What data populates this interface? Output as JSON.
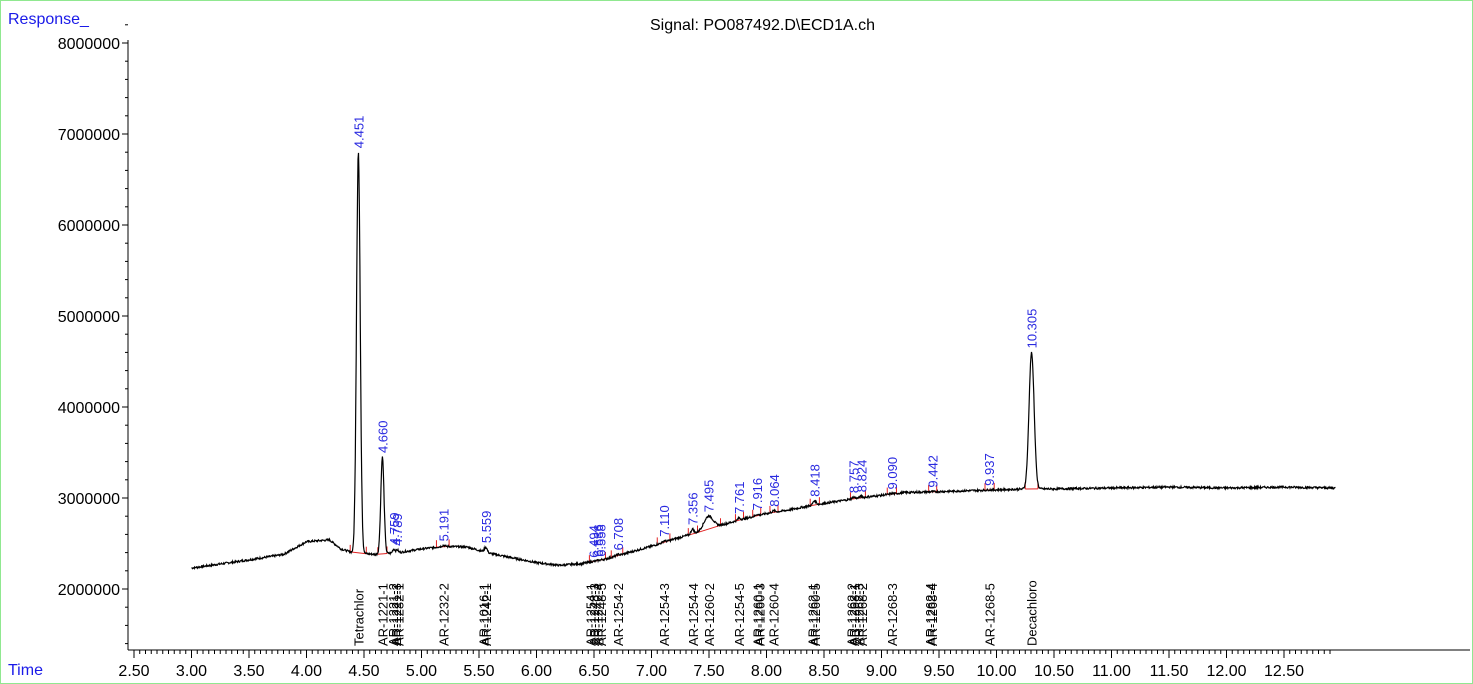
{
  "header": {
    "y_axis_label": "Response_",
    "x_axis_label": "Time",
    "title": "Signal: PO087492.D\\ECD1A.ch"
  },
  "colors": {
    "trace": "#000000",
    "baseline": "#e02020",
    "retention_labels": "#2a2ae0",
    "axis_titles": "#1a1ae8",
    "frame": "#90e890"
  },
  "chart_data": {
    "type": "line",
    "title": "Signal: PO087492.D\\ECD1A.ch",
    "xlabel": "Time",
    "ylabel": "Response_",
    "xlim": [
      2.5,
      12.95
    ],
    "ylim": [
      1300000,
      8400000
    ],
    "x_ticks": [
      "2.50",
      "3.00",
      "3.50",
      "4.00",
      "4.50",
      "5.00",
      "5.50",
      "6.00",
      "6.50",
      "7.00",
      "7.50",
      "8.00",
      "8.50",
      "9.00",
      "9.50",
      "10.00",
      "10.50",
      "11.00",
      "11.50",
      "12.00",
      "12.50"
    ],
    "y_ticks": [
      "2000000",
      "3000000",
      "4000000",
      "5000000",
      "6000000",
      "7000000",
      "8000000"
    ],
    "grid": false,
    "baseline_points": [
      [
        3.0,
        2230000
      ],
      [
        3.5,
        2320000
      ],
      [
        3.8,
        2380000
      ],
      [
        3.9,
        2450000
      ],
      [
        4.0,
        2520000
      ],
      [
        4.2,
        2540000
      ],
      [
        4.3,
        2440000
      ],
      [
        4.4,
        2400000
      ],
      [
        4.6,
        2380000
      ],
      [
        4.8,
        2400000
      ],
      [
        5.0,
        2440000
      ],
      [
        5.2,
        2470000
      ],
      [
        5.4,
        2460000
      ],
      [
        5.6,
        2390000
      ],
      [
        5.8,
        2340000
      ],
      [
        6.0,
        2290000
      ],
      [
        6.2,
        2260000
      ],
      [
        6.4,
        2280000
      ],
      [
        6.6,
        2330000
      ],
      [
        6.8,
        2400000
      ],
      [
        7.0,
        2470000
      ],
      [
        7.2,
        2550000
      ],
      [
        7.4,
        2620000
      ],
      [
        7.6,
        2700000
      ],
      [
        7.8,
        2770000
      ],
      [
        8.0,
        2830000
      ],
      [
        8.2,
        2870000
      ],
      [
        8.4,
        2920000
      ],
      [
        8.6,
        2960000
      ],
      [
        8.8,
        3000000
      ],
      [
        9.0,
        3030000
      ],
      [
        9.2,
        3060000
      ],
      [
        9.5,
        3070000
      ],
      [
        10.0,
        3090000
      ],
      [
        10.3,
        3100000
      ],
      [
        10.5,
        3100000
      ],
      [
        11.0,
        3110000
      ],
      [
        11.5,
        3120000
      ],
      [
        12.0,
        3110000
      ],
      [
        12.5,
        3120000
      ],
      [
        12.95,
        3110000
      ]
    ],
    "peaks": [
      {
        "rt": 4.451,
        "label": "4.451",
        "height": 6800000,
        "width": 0.016
      },
      {
        "rt": 4.66,
        "label": "4.660",
        "height": 3450000,
        "width": 0.014
      },
      {
        "rt": 4.759,
        "label": "4.759",
        "height": 2440000,
        "width": 0.01
      },
      {
        "rt": 4.789,
        "label": "4.789",
        "height": 2430000,
        "width": 0.01
      },
      {
        "rt": 5.191,
        "label": "5.191",
        "height": 2480000,
        "width": 0.012
      },
      {
        "rt": 5.559,
        "label": "5.559",
        "height": 2460000,
        "width": 0.012
      },
      {
        "rt": 6.494,
        "label": "6.494",
        "height": 2300000,
        "width": 0.01
      },
      {
        "rt": 6.536,
        "label": "6.536",
        "height": 2310000,
        "width": 0.01
      },
      {
        "rt": 6.558,
        "label": "6.558",
        "height": 2310000,
        "width": 0.01
      },
      {
        "rt": 6.708,
        "label": "6.708",
        "height": 2380000,
        "width": 0.012
      },
      {
        "rt": 7.11,
        "label": "7.110",
        "height": 2530000,
        "width": 0.012
      },
      {
        "rt": 7.356,
        "label": "7.356",
        "height": 2660000,
        "width": 0.012
      },
      {
        "rt": 7.495,
        "label": "7.495",
        "height": 2800000,
        "width": 0.04
      },
      {
        "rt": 7.761,
        "label": "7.761",
        "height": 2780000,
        "width": 0.012
      },
      {
        "rt": 7.916,
        "label": "7.916",
        "height": 2820000,
        "width": 0.012
      },
      {
        "rt": 8.064,
        "label": "8.064",
        "height": 2860000,
        "width": 0.014
      },
      {
        "rt": 8.418,
        "label": "8.418",
        "height": 2970000,
        "width": 0.014
      },
      {
        "rt": 8.757,
        "label": "8.757",
        "height": 3010000,
        "width": 0.012
      },
      {
        "rt": 8.824,
        "label": "8.824",
        "height": 3020000,
        "width": 0.012
      },
      {
        "rt": 9.09,
        "label": "9.090",
        "height": 3050000,
        "width": 0.012
      },
      {
        "rt": 9.442,
        "label": "9.442",
        "height": 3070000,
        "width": 0.012
      },
      {
        "rt": 9.937,
        "label": "9.937",
        "height": 3090000,
        "width": 0.012
      },
      {
        "rt": 10.305,
        "label": "10.305",
        "height": 4600000,
        "width": 0.022
      }
    ],
    "integrations": [
      {
        "from": 4.38,
        "to": 4.52
      },
      {
        "from": 4.62,
        "to": 4.7
      },
      {
        "from": 5.13,
        "to": 5.24
      },
      {
        "from": 6.46,
        "to": 6.6
      },
      {
        "from": 6.65,
        "to": 6.75
      },
      {
        "from": 7.05,
        "to": 7.16
      },
      {
        "from": 7.32,
        "to": 7.4
      },
      {
        "from": 7.4,
        "to": 7.6
      },
      {
        "from": 7.73,
        "to": 7.8
      },
      {
        "from": 7.88,
        "to": 7.95
      },
      {
        "from": 8.03,
        "to": 8.1
      },
      {
        "from": 8.38,
        "to": 8.46
      },
      {
        "from": 8.73,
        "to": 8.86
      },
      {
        "from": 9.05,
        "to": 9.13
      },
      {
        "from": 9.41,
        "to": 9.48
      },
      {
        "from": 9.9,
        "to": 9.98
      },
      {
        "from": 10.25,
        "to": 10.36
      }
    ],
    "compounds": [
      {
        "rt": 4.451,
        "label": "Tetrachlor"
      },
      {
        "rt": 4.66,
        "label": "AR-1221-1"
      },
      {
        "rt": 4.75,
        "label": "AR-1221-2"
      },
      {
        "rt": 4.78,
        "label": "AR-1221-3"
      },
      {
        "rt": 4.8,
        "label": "AR-1232-1"
      },
      {
        "rt": 5.19,
        "label": "AR-1232-2"
      },
      {
        "rt": 5.54,
        "label": "AR-1016-1"
      },
      {
        "rt": 5.56,
        "label": "AR-1242-1"
      },
      {
        "rt": 6.47,
        "label": "AR-1254-1"
      },
      {
        "rt": 6.5,
        "label": "AR-1248-3"
      },
      {
        "rt": 6.53,
        "label": "AR-1242-4"
      },
      {
        "rt": 6.56,
        "label": "AR-1248-5"
      },
      {
        "rt": 6.71,
        "label": "AR-1254-2"
      },
      {
        "rt": 7.11,
        "label": "AR-1254-3"
      },
      {
        "rt": 7.36,
        "label": "AR-1254-4"
      },
      {
        "rt": 7.5,
        "label": "AR-1260-2"
      },
      {
        "rt": 7.76,
        "label": "AR-1254-5"
      },
      {
        "rt": 7.92,
        "label": "AR-1260-1"
      },
      {
        "rt": 7.94,
        "label": "AR-1260-3"
      },
      {
        "rt": 8.06,
        "label": "AR-1260-4"
      },
      {
        "rt": 8.4,
        "label": "AR-1262-1"
      },
      {
        "rt": 8.42,
        "label": "AR-1260-5"
      },
      {
        "rt": 8.74,
        "label": "AR-1262-2"
      },
      {
        "rt": 8.76,
        "label": "AR-1268-1"
      },
      {
        "rt": 8.8,
        "label": "AR-1262-3"
      },
      {
        "rt": 8.83,
        "label": "AR-1268-2"
      },
      {
        "rt": 9.09,
        "label": "AR-1268-3"
      },
      {
        "rt": 9.42,
        "label": "AR-1262-4"
      },
      {
        "rt": 9.44,
        "label": "AR-1268-4"
      },
      {
        "rt": 9.94,
        "label": "AR-1268-5"
      },
      {
        "rt": 10.305,
        "label": "Decachloro"
      }
    ]
  }
}
